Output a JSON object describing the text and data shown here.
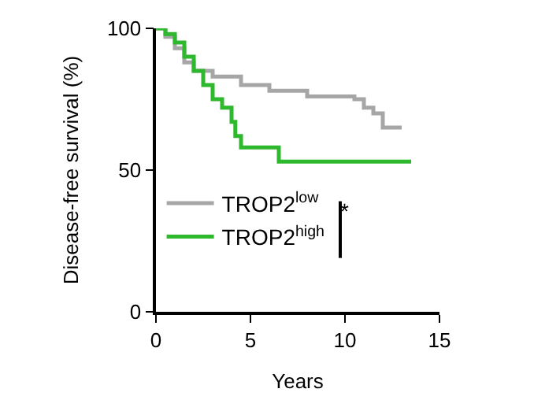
{
  "chart_data": {
    "type": "step",
    "xlabel": "Years",
    "ylabel": "Disease-free survival (%)",
    "series": [
      {
        "name": "TROP2$^{low}$",
        "color": "#a6a6a6",
        "x": [
          0,
          0.5,
          1,
          1.5,
          2,
          3,
          4.5,
          6,
          8,
          10.5,
          11,
          11.5,
          12,
          13
        ],
        "values": [
          100,
          97,
          93,
          88,
          85,
          83,
          80,
          78,
          76,
          75,
          72,
          70,
          65,
          65
        ]
      },
      {
        "name": "TROP2$^{high}$",
        "color": "#2db82d",
        "x": [
          0,
          0.5,
          1,
          1.5,
          2,
          2.5,
          3,
          3.5,
          4,
          4.2,
          4.5,
          6.5,
          13.5
        ],
        "values": [
          100,
          98,
          95,
          90,
          85,
          80,
          75,
          72,
          67,
          62,
          58,
          53,
          53
        ]
      }
    ],
    "annotations": [
      "*"
    ],
    "xlim": [
      0,
      15
    ],
    "ylim": [
      0,
      100
    ],
    "xticks": [
      0,
      5,
      10,
      15
    ],
    "yticks": [
      0,
      50,
      100
    ],
    "legend": "left"
  }
}
